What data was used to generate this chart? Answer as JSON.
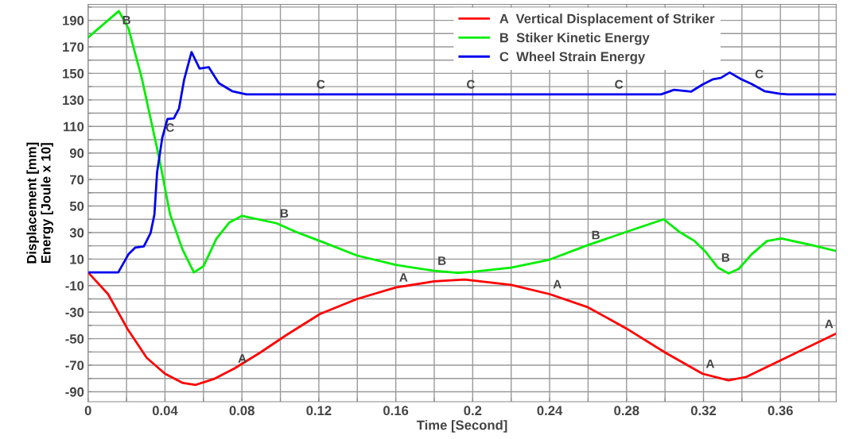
{
  "chart_data": {
    "type": "line",
    "xlabel": "Time [Second]",
    "ylabel": "Displacement [mm]\nEnergy [Joule x 10]",
    "xlim": [
      0,
      0.389
    ],
    "ylim": [
      -97.5,
      202
    ],
    "xticks": [
      0,
      {
        "value": 0.02,
        "label": null
      },
      0.04,
      {
        "value": 0.06,
        "label": null
      },
      0.08,
      {
        "value": 0.1,
        "label": null
      },
      0.12,
      {
        "value": 0.14,
        "label": null
      },
      0.16,
      {
        "value": 0.18,
        "label": null
      },
      0.2,
      {
        "value": 0.22,
        "label": null
      },
      0.24,
      {
        "value": 0.26,
        "label": null
      },
      0.28,
      {
        "value": 0.3,
        "label": null
      },
      0.32,
      {
        "value": 0.34,
        "label": null
      },
      0.36,
      {
        "value": 0.38,
        "label": null
      }
    ],
    "yticks": [
      -90,
      {
        "value": -80,
        "label": null
      },
      -70,
      {
        "value": -60,
        "label": null
      },
      -50,
      {
        "value": -40,
        "label": null
      },
      -30,
      {
        "value": -20,
        "label": null
      },
      -10,
      {
        "value": 0,
        "label": null
      },
      10,
      {
        "value": 20,
        "label": null
      },
      30,
      {
        "value": 40,
        "label": null
      },
      50,
      {
        "value": 60,
        "label": null
      },
      70,
      {
        "value": 80,
        "label": null
      },
      90,
      {
        "value": 100,
        "label": null
      },
      110,
      {
        "value": 120,
        "label": null
      },
      130,
      {
        "value": 140,
        "label": null
      },
      150,
      {
        "value": 160,
        "label": null
      },
      170,
      {
        "value": 180,
        "label": null
      },
      190,
      {
        "value": 200,
        "label": null
      }
    ],
    "grid": true,
    "legend": "top right",
    "series": [
      {
        "name": "A  Vertical Displacement of Striker",
        "color": "#ff0000",
        "x": [
          0,
          0.0104,
          0.0204,
          0.0305,
          0.04,
          0.0493,
          0.056,
          0.0654,
          0.0762,
          0.0896,
          0.103,
          0.1206,
          0.14,
          0.16,
          0.18,
          0.1958,
          0.22,
          0.24,
          0.26,
          0.28,
          0.3,
          0.3195,
          0.333,
          0.3423,
          0.3585,
          0.3887
        ],
        "values": [
          0,
          -16.4,
          -42.4,
          -64.4,
          -76.4,
          -83.4,
          -84.8,
          -80.4,
          -72.4,
          -60.4,
          -47.4,
          -31.4,
          -20,
          -11.4,
          -6.8,
          -5.4,
          -9.4,
          -16.4,
          -26.4,
          -42.4,
          -60.4,
          -76.4,
          -81.4,
          -78.8,
          -67.4,
          -46.4
        ]
      },
      {
        "name": "B  Stiker Kinetic Energy",
        "color": "#00ee00",
        "x": [
          0,
          0.016,
          0.021,
          0.028,
          0.0325,
          0.037,
          0.0426,
          0.049,
          0.055,
          0.06,
          0.0668,
          0.0735,
          0.08,
          0.098,
          0.108,
          0.1206,
          0.14,
          0.16,
          0.18,
          0.192,
          0.2,
          0.22,
          0.24,
          0.26,
          0.28,
          0.2993,
          0.3074,
          0.3154,
          0.321,
          0.3275,
          0.333,
          0.3383,
          0.345,
          0.353,
          0.3605,
          0.376,
          0.3887
        ],
        "values": [
          177,
          197,
          184,
          146,
          116,
          86,
          44,
          17.6,
          0,
          4.6,
          25.6,
          37.6,
          42.6,
          37,
          30.6,
          23.6,
          12.6,
          5.6,
          1.2,
          -0.4,
          0.4,
          3.6,
          9.6,
          20.6,
          30.6,
          40,
          30.6,
          23.6,
          15.6,
          3.6,
          -0.8,
          2.6,
          13.6,
          23.6,
          25.6,
          20.6,
          16.2
        ]
      },
      {
        "name": "C  Wheel Strain Energy",
        "color": "#0000ee",
        "x": [
          0,
          0.0157,
          0.021,
          0.0245,
          0.029,
          0.0325,
          0.0345,
          0.0359,
          0.0386,
          0.0413,
          0.0446,
          0.0473,
          0.05,
          0.0538,
          0.058,
          0.0628,
          0.068,
          0.0749,
          0.0823,
          0.298,
          0.3047,
          0.3135,
          0.3195,
          0.325,
          0.329,
          0.3336,
          0.3396,
          0.345,
          0.3517,
          0.3598,
          0.3638,
          0.389
        ],
        "values": [
          0,
          0,
          13.6,
          18.6,
          19.6,
          29.6,
          43.6,
          75.6,
          101.6,
          115.6,
          116,
          123.6,
          145.6,
          166,
          153.6,
          154.6,
          142.6,
          136.6,
          134.2,
          134.2,
          137.6,
          136.2,
          141.6,
          145.6,
          146.6,
          150.6,
          145.6,
          142,
          136.6,
          134.6,
          134.2,
          134.2
        ]
      }
    ],
    "annotations": [
      {
        "text": "B",
        "x": 0.016,
        "y": 197
      },
      {
        "text": "B",
        "x": 0.098,
        "y": 37
      },
      {
        "text": "B",
        "x": 0.18,
        "y": 1.2
      },
      {
        "text": "B",
        "x": 0.26,
        "y": 20.6
      },
      {
        "text": "B",
        "x": 0.3275,
        "y": 3.6
      },
      {
        "text": "C",
        "x": 0.0386,
        "y": 101.6
      },
      {
        "text": "C",
        "x": 0.117,
        "y": 134.2
      },
      {
        "text": "C",
        "x": 0.195,
        "y": 134.2
      },
      {
        "text": "C",
        "x": 0.272,
        "y": 134.2
      },
      {
        "text": "C",
        "x": 0.345,
        "y": 142
      },
      {
        "text": "A",
        "x": 0.0762,
        "y": -72.4
      },
      {
        "text": "A",
        "x": 0.16,
        "y": -11.4
      },
      {
        "text": "A",
        "x": 0.24,
        "y": -16.4
      },
      {
        "text": "A",
        "x": 0.3195,
        "y": -76.4
      },
      {
        "text": "A",
        "x": 0.3887,
        "y": -46.4
      }
    ]
  }
}
